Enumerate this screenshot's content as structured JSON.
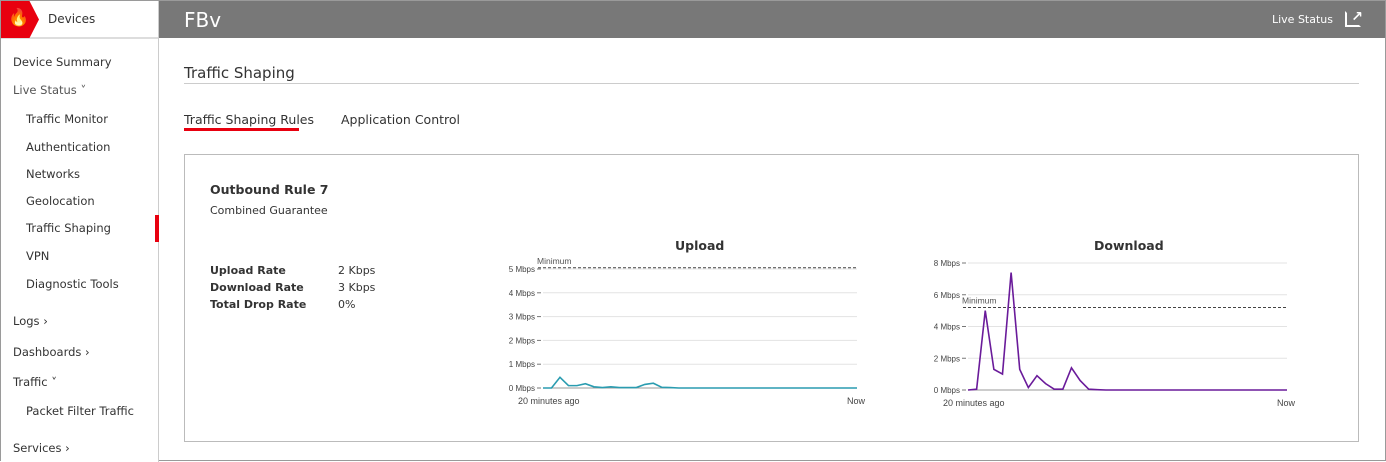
{
  "sidebar": {
    "brand": "Devices",
    "items": [
      {
        "label": "Device Summary"
      },
      {
        "label": "Live Status ˅"
      },
      {
        "label": "Traffic Monitor"
      },
      {
        "label": "Authentication"
      },
      {
        "label": "Networks"
      },
      {
        "label": "Geolocation"
      },
      {
        "label": "Traffic Shaping",
        "active": true
      },
      {
        "label": "VPN"
      },
      {
        "label": "Diagnostic Tools"
      },
      {
        "label": "Logs ›"
      },
      {
        "label": "Dashboards ›"
      },
      {
        "label": "Traffic ˅"
      },
      {
        "label": "Packet Filter Traffic"
      },
      {
        "label": "Services ›"
      }
    ]
  },
  "header": {
    "title": "FBv",
    "live_status": "Live Status",
    "icon": "external-link-icon"
  },
  "page": {
    "title": "Traffic Shaping",
    "tabs": [
      {
        "label": "Traffic Shaping Rules",
        "active": true
      },
      {
        "label": "Application Control"
      }
    ]
  },
  "rule": {
    "name": "Outbound Rule 7",
    "subtitle": "Combined Guarantee",
    "stats": [
      {
        "label": "Upload Rate",
        "value": "2 Kbps"
      },
      {
        "label": "Download Rate",
        "value": "3 Kbps"
      },
      {
        "label": "Total Drop Rate",
        "value": "0%"
      }
    ]
  },
  "colors": {
    "accent": "#e8000f",
    "upload": "#2a9cb0",
    "download": "#6a1b9a"
  },
  "chart_data": [
    {
      "type": "line",
      "title": "Upload",
      "y_ticks": [
        "0 Mbps",
        "1 Mbps",
        "2 Mbps",
        "3 Mbps",
        "4 Mbps",
        "5 Mbps"
      ],
      "ylim": [
        0,
        5
      ],
      "x_labels": [
        "20 minutes ago",
        "Now"
      ],
      "reference": {
        "label": "Minimum",
        "value": 5.05
      },
      "values": [
        0,
        0,
        0.45,
        0.1,
        0.1,
        0.18,
        0.05,
        0.02,
        0.05,
        0.02,
        0.02,
        0.02,
        0.15,
        0.2,
        0.03,
        0.02,
        0,
        0,
        0,
        0,
        0,
        0,
        0,
        0,
        0,
        0,
        0,
        0,
        0,
        0,
        0,
        0,
        0,
        0,
        0,
        0,
        0,
        0
      ]
    },
    {
      "type": "line",
      "title": "Download",
      "y_ticks": [
        "0 Mbps",
        "2 Mbps",
        "4 Mbps",
        "6 Mbps",
        "8 Mbps"
      ],
      "ylim": [
        0,
        8
      ],
      "x_labels": [
        "20 minutes ago",
        "Now"
      ],
      "reference": {
        "label": "Minimum",
        "value": 5.2
      },
      "values": [
        0,
        0.05,
        5,
        1.3,
        1.0,
        7.4,
        1.3,
        0.15,
        0.9,
        0.4,
        0.05,
        0.05,
        1.4,
        0.6,
        0.05,
        0.02,
        0,
        0,
        0,
        0,
        0,
        0,
        0,
        0,
        0,
        0,
        0,
        0,
        0,
        0,
        0,
        0,
        0,
        0,
        0,
        0,
        0,
        0
      ]
    }
  ]
}
